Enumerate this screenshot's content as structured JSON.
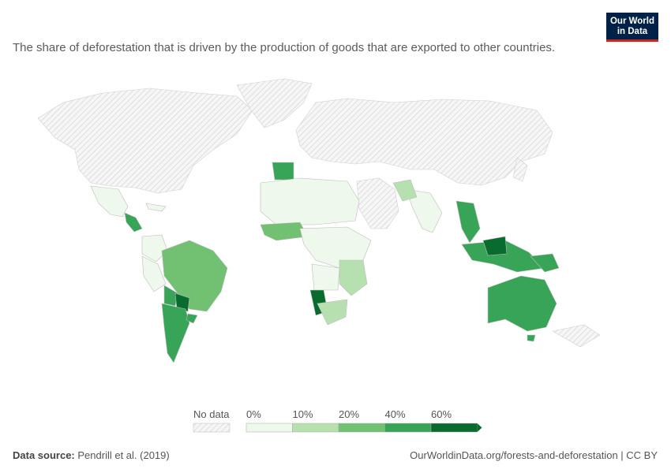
{
  "header": {
    "subtitle": "The share of deforestation that is driven by the production of goods that are exported to other countries.",
    "logo_line1": "Our World",
    "logo_line2": "in Data"
  },
  "legend": {
    "no_data_label": "No data",
    "bins": [
      {
        "label": "0%",
        "color": "#eff8ec"
      },
      {
        "label": "10%",
        "color": "#b7e0b0"
      },
      {
        "label": "20%",
        "color": "#72c173"
      },
      {
        "label": "40%",
        "color": "#38a457"
      },
      {
        "label": "60%",
        "color": "#0a6b2e"
      }
    ]
  },
  "colors": {
    "no_data": "#f1f1f1",
    "border": "#c8c8c8",
    "hatch": "#d6d6d6"
  },
  "footer": {
    "source_label": "Data source:",
    "source_value": "Pendrill et al. (2019)",
    "credit": "OurWorldinData.org/forests-and-deforestation | CC BY"
  }
}
